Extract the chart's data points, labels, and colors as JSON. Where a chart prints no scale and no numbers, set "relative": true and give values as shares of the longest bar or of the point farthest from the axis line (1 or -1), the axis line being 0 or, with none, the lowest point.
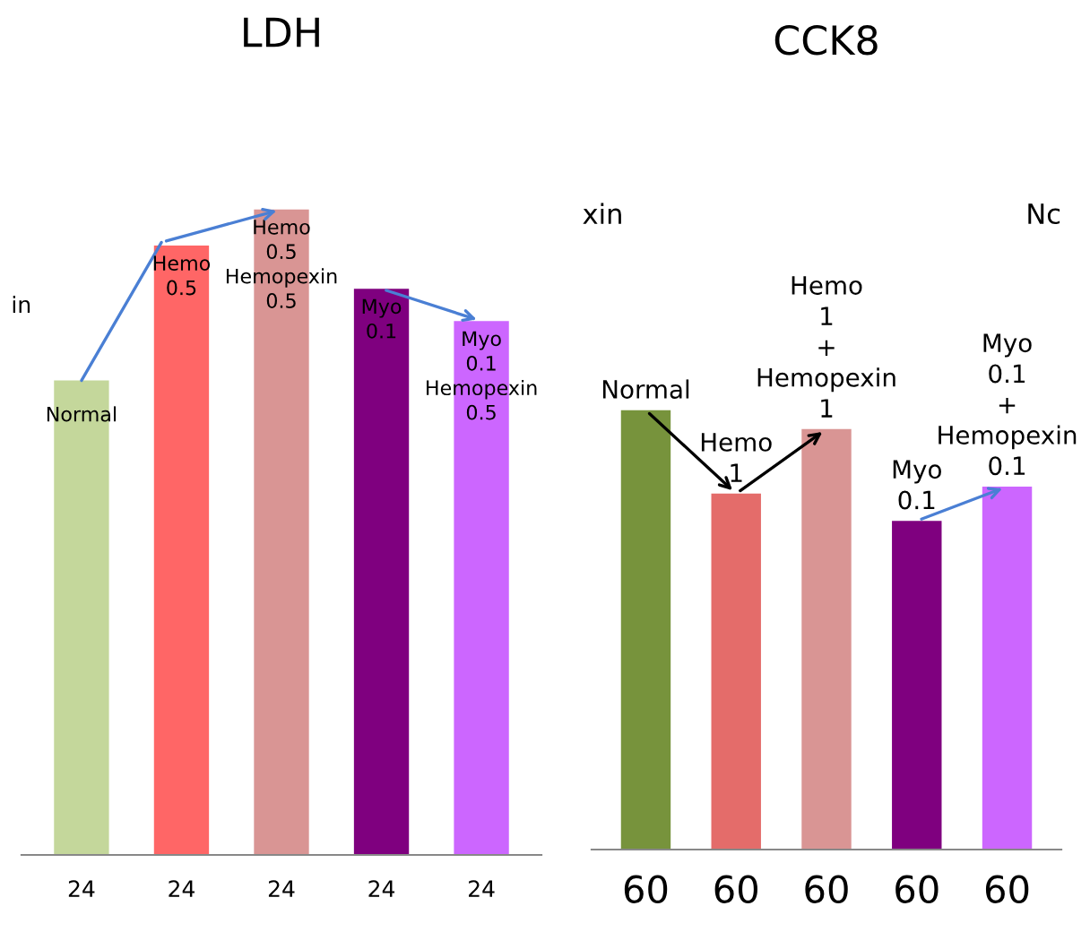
{
  "chart_data": [
    {
      "type": "bar",
      "title": "LDH",
      "relative": true,
      "categories": [
        "24",
        "24",
        "24",
        "24",
        "24"
      ],
      "annotations": [
        "in"
      ],
      "series": [
        {
          "name": "Normal",
          "color": "#c4d79b",
          "values": [
            0.735,
            null,
            null,
            null,
            null
          ]
        },
        {
          "name": "Hemo\n0.5",
          "color": "#ff6666",
          "values": [
            null,
            0.944,
            null,
            null,
            null
          ]
        },
        {
          "name": "Hemo\n0.5\nHemopexin\n0.5",
          "color": "#d99594",
          "values": [
            null,
            null,
            1,
            null,
            null
          ]
        },
        {
          "name": "Myo\n0.1",
          "color": "#7f007f",
          "values": [
            null,
            null,
            null,
            0.877,
            null
          ]
        },
        {
          "name": "Myo\n0.1\nHemopexin\n0.5",
          "color": "#cc66ff",
          "values": [
            null,
            null,
            null,
            null,
            0.827
          ]
        }
      ]
    },
    {
      "type": "bar",
      "title": "CCK8",
      "relative": true,
      "categories": [
        "60",
        "60",
        "60",
        "60",
        "60"
      ],
      "annotations": [
        "xin",
        "Nc"
      ],
      "series": [
        {
          "name": "Normal",
          "color": "#77933c",
          "values": [
            1,
            null,
            null,
            null,
            null
          ]
        },
        {
          "name": "Hemo\n1",
          "color": "#e46c6a",
          "values": [
            null,
            0.81,
            null,
            null,
            null
          ]
        },
        {
          "name": "Hemo\n1\n+\nHemopexin\n1",
          "color": "#d99594",
          "values": [
            null,
            null,
            0.957,
            null,
            null
          ]
        },
        {
          "name": "Myo\n0.1",
          "color": "#7f007f",
          "values": [
            null,
            null,
            null,
            0.748,
            null
          ]
        },
        {
          "name": "Myo\n0.1\n+\nHemopexin\n0.1",
          "color": "#cc66ff",
          "values": [
            null,
            null,
            null,
            null,
            0.826
          ]
        }
      ]
    }
  ]
}
